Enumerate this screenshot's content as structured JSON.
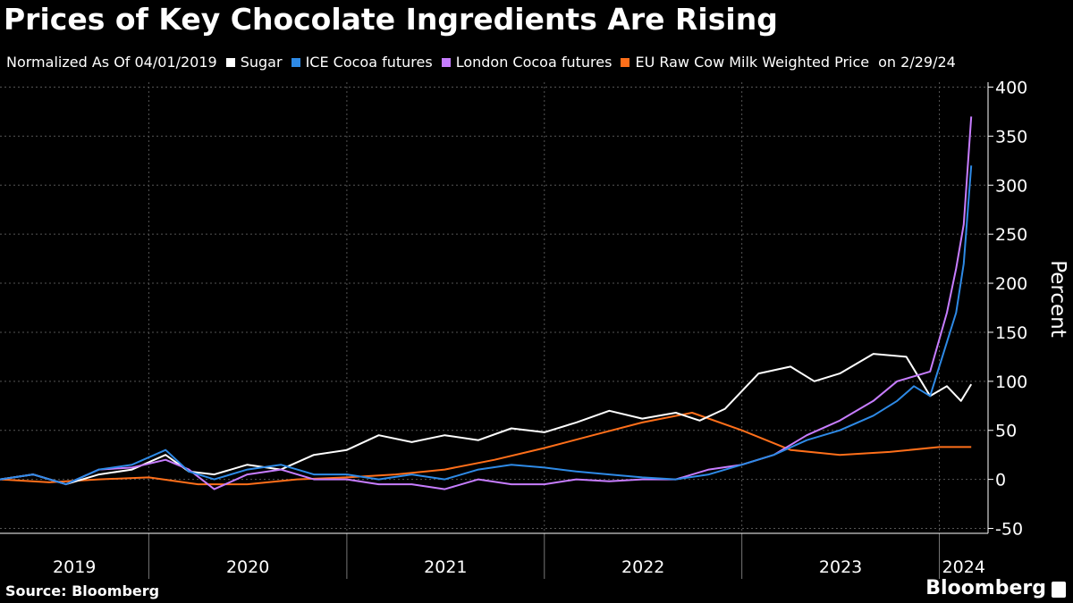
{
  "title": "Prices of Key Chocolate Ingredients Are Rising",
  "legend": {
    "prefix": "Normalized As Of 04/01/2019",
    "suffix": "on 2/29/24"
  },
  "source": "Source: Bloomberg",
  "brand": "Bloomberg",
  "logo_icon": "bloomberg-chart-icon",
  "chart_data": {
    "type": "line",
    "ylabel": "Percent",
    "ylim": [
      -55,
      405
    ],
    "yticks": [
      -50,
      0,
      50,
      100,
      150,
      200,
      250,
      300,
      350,
      400
    ],
    "xlim": [
      "2019-04-01",
      "2024-03-31"
    ],
    "year_labels": [
      "2019",
      "2020",
      "2021",
      "2022",
      "2023",
      "2024"
    ],
    "year_boundaries": [
      "2020-01-01",
      "2021-01-01",
      "2022-01-01",
      "2023-01-01",
      "2024-01-01"
    ],
    "grid": true,
    "legend_placement": "top",
    "series": [
      {
        "name": "Sugar",
        "color": "#ffffff",
        "points": [
          [
            "2019-04-01",
            0
          ],
          [
            "2019-06-01",
            5
          ],
          [
            "2019-08-01",
            -5
          ],
          [
            "2019-10-01",
            5
          ],
          [
            "2019-12-01",
            10
          ],
          [
            "2020-02-01",
            25
          ],
          [
            "2020-03-15",
            8
          ],
          [
            "2020-05-01",
            5
          ],
          [
            "2020-07-01",
            15
          ],
          [
            "2020-09-01",
            10
          ],
          [
            "2020-11-01",
            25
          ],
          [
            "2021-01-01",
            30
          ],
          [
            "2021-03-01",
            45
          ],
          [
            "2021-05-01",
            38
          ],
          [
            "2021-07-01",
            45
          ],
          [
            "2021-09-01",
            40
          ],
          [
            "2021-11-01",
            52
          ],
          [
            "2022-01-01",
            48
          ],
          [
            "2022-03-01",
            58
          ],
          [
            "2022-05-01",
            70
          ],
          [
            "2022-07-01",
            62
          ],
          [
            "2022-09-01",
            68
          ],
          [
            "2022-10-15",
            60
          ],
          [
            "2022-12-01",
            72
          ],
          [
            "2023-02-01",
            108
          ],
          [
            "2023-04-01",
            115
          ],
          [
            "2023-05-15",
            100
          ],
          [
            "2023-07-01",
            108
          ],
          [
            "2023-09-01",
            128
          ],
          [
            "2023-11-01",
            125
          ],
          [
            "2023-12-15",
            85
          ],
          [
            "2024-01-15",
            95
          ],
          [
            "2024-02-10",
            80
          ],
          [
            "2024-02-29",
            97
          ]
        ]
      },
      {
        "name": "ICE Cocoa futures",
        "color": "#2e8ae6",
        "points": [
          [
            "2019-04-01",
            0
          ],
          [
            "2019-06-01",
            5
          ],
          [
            "2019-08-01",
            -5
          ],
          [
            "2019-10-01",
            10
          ],
          [
            "2019-12-01",
            15
          ],
          [
            "2020-02-01",
            30
          ],
          [
            "2020-03-15",
            8
          ],
          [
            "2020-05-01",
            0
          ],
          [
            "2020-07-01",
            10
          ],
          [
            "2020-09-01",
            15
          ],
          [
            "2020-11-01",
            5
          ],
          [
            "2021-01-01",
            5
          ],
          [
            "2021-03-01",
            0
          ],
          [
            "2021-05-01",
            5
          ],
          [
            "2021-07-01",
            0
          ],
          [
            "2021-09-01",
            10
          ],
          [
            "2021-11-01",
            15
          ],
          [
            "2022-01-01",
            12
          ],
          [
            "2022-03-01",
            8
          ],
          [
            "2022-05-01",
            5
          ],
          [
            "2022-07-01",
            2
          ],
          [
            "2022-09-01",
            0
          ],
          [
            "2022-11-01",
            5
          ],
          [
            "2023-01-01",
            15
          ],
          [
            "2023-03-01",
            25
          ],
          [
            "2023-05-01",
            40
          ],
          [
            "2023-07-01",
            50
          ],
          [
            "2023-09-01",
            65
          ],
          [
            "2023-10-15",
            80
          ],
          [
            "2023-11-15",
            95
          ],
          [
            "2023-12-15",
            85
          ],
          [
            "2024-01-15",
            140
          ],
          [
            "2024-02-01",
            170
          ],
          [
            "2024-02-15",
            220
          ],
          [
            "2024-02-29",
            320
          ]
        ]
      },
      {
        "name": "London Cocoa futures",
        "color": "#c77dff",
        "points": [
          [
            "2019-04-01",
            0
          ],
          [
            "2019-06-01",
            5
          ],
          [
            "2019-08-01",
            -5
          ],
          [
            "2019-10-01",
            10
          ],
          [
            "2019-12-01",
            12
          ],
          [
            "2020-02-01",
            20
          ],
          [
            "2020-03-15",
            10
          ],
          [
            "2020-05-01",
            -10
          ],
          [
            "2020-07-01",
            5
          ],
          [
            "2020-09-01",
            10
          ],
          [
            "2020-11-01",
            0
          ],
          [
            "2021-01-01",
            0
          ],
          [
            "2021-03-01",
            -5
          ],
          [
            "2021-05-01",
            -5
          ],
          [
            "2021-07-01",
            -10
          ],
          [
            "2021-09-01",
            0
          ],
          [
            "2021-11-01",
            -5
          ],
          [
            "2022-01-01",
            -5
          ],
          [
            "2022-03-01",
            0
          ],
          [
            "2022-05-01",
            -2
          ],
          [
            "2022-07-01",
            0
          ],
          [
            "2022-09-01",
            0
          ],
          [
            "2022-11-01",
            10
          ],
          [
            "2023-01-01",
            15
          ],
          [
            "2023-03-01",
            25
          ],
          [
            "2023-05-01",
            45
          ],
          [
            "2023-07-01",
            60
          ],
          [
            "2023-09-01",
            80
          ],
          [
            "2023-10-15",
            100
          ],
          [
            "2023-11-15",
            105
          ],
          [
            "2023-12-15",
            110
          ],
          [
            "2024-01-15",
            170
          ],
          [
            "2024-02-01",
            215
          ],
          [
            "2024-02-15",
            260
          ],
          [
            "2024-02-29",
            370
          ]
        ]
      },
      {
        "name": "EU Raw Cow Milk Weighted Price",
        "color": "#ff6f1a",
        "points": [
          [
            "2019-04-01",
            0
          ],
          [
            "2019-07-01",
            -3
          ],
          [
            "2019-10-01",
            0
          ],
          [
            "2020-01-01",
            2
          ],
          [
            "2020-04-01",
            -5
          ],
          [
            "2020-07-01",
            -5
          ],
          [
            "2020-10-01",
            0
          ],
          [
            "2021-01-01",
            2
          ],
          [
            "2021-04-01",
            5
          ],
          [
            "2021-07-01",
            10
          ],
          [
            "2021-10-01",
            20
          ],
          [
            "2022-01-01",
            32
          ],
          [
            "2022-04-01",
            45
          ],
          [
            "2022-07-01",
            58
          ],
          [
            "2022-10-01",
            68
          ],
          [
            "2023-01-01",
            50
          ],
          [
            "2023-04-01",
            30
          ],
          [
            "2023-07-01",
            25
          ],
          [
            "2023-10-01",
            28
          ],
          [
            "2024-01-01",
            33
          ],
          [
            "2024-02-29",
            33
          ]
        ]
      }
    ]
  }
}
